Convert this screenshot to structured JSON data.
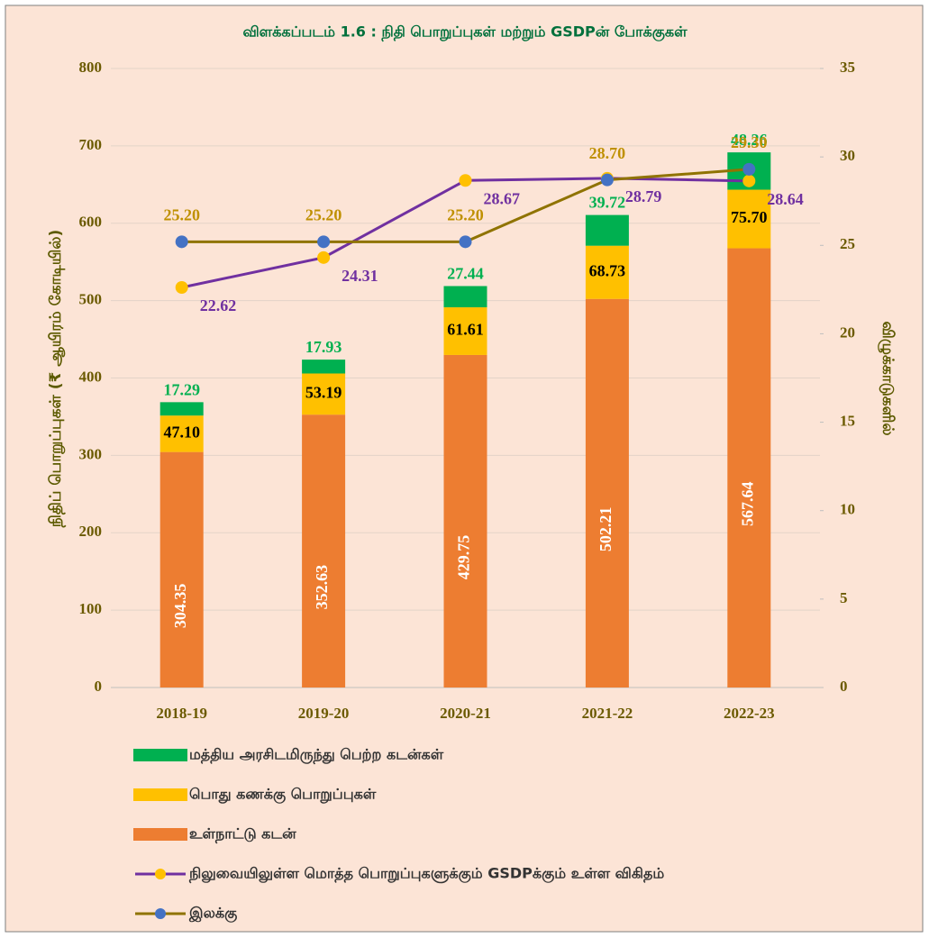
{
  "chart_data": {
    "type": "combo",
    "title": "விளக்கப்படம் 1.6 : நிதி பொறுப்புகள் மற்றும் GSDPன் போக்குகள்",
    "y_label": "நிதிப் பொறுப்புகள் (₹ ஆயிரம் கோடியில்)",
    "y2_label": "விழுக்காடுகளில்",
    "categories": [
      "2018-19",
      "2019-20",
      "2020-21",
      "2021-22",
      "2022-23"
    ],
    "series": [
      {
        "name": "மத்திய அரசிடமிருந்து பெற்ற கடன்கள்",
        "type": "bar",
        "color": "#00B050",
        "label_color": "#00B050",
        "values": [
          17.29,
          17.93,
          27.44,
          39.72,
          48.26
        ],
        "value_labels": [
          "17.29",
          "17.93",
          "27.44",
          "39.72",
          "48.26"
        ]
      },
      {
        "name": "பொது கணக்கு பொறுப்புகள்",
        "type": "bar",
        "color": "#FFC000",
        "label_color": "#000000",
        "values": [
          47.1,
          53.19,
          61.61,
          68.73,
          75.7
        ],
        "value_labels": [
          "47.10",
          "53.19",
          "61.61",
          "68.73",
          "75.70"
        ]
      },
      {
        "name": "உள்நாட்டு கடன்",
        "type": "bar",
        "color": "#ED7D31",
        "label_color": "#FFFFFF",
        "values": [
          304.35,
          352.63,
          429.75,
          502.21,
          567.64
        ],
        "value_labels": [
          "304.35",
          "352.63",
          "429.75",
          "502.21",
          "567.64"
        ]
      },
      {
        "name": "நிலுவையிலுள்ள மொத்த பொறுப்புகளுக்கும் GSDPக்கும் உள்ள விகிதம்",
        "type": "line",
        "axis": "y2",
        "color": "#7030A0",
        "marker_color": "#FFC000",
        "label_color": "#7030A0",
        "values": [
          22.62,
          24.31,
          28.67,
          28.79,
          28.64
        ],
        "value_labels": [
          "22.62",
          "24.31",
          "28.67",
          "28.79",
          "28.64"
        ]
      },
      {
        "name": "இலக்கு",
        "type": "line",
        "axis": "y2",
        "color": "#8F7300",
        "marker_color": "#4472C4",
        "label_color": "#BF9000",
        "values": [
          25.2,
          25.2,
          25.2,
          28.7,
          29.3
        ],
        "value_labels": [
          "25.20",
          "25.20",
          "25.20",
          "28.70",
          "29.30"
        ]
      }
    ],
    "ylim": [
      0,
      800
    ],
    "yticks": [
      0,
      100,
      200,
      300,
      400,
      500,
      600,
      700,
      800
    ],
    "y2lim": [
      0,
      35
    ],
    "y2ticks": [
      0,
      5,
      10,
      15,
      20,
      25,
      30,
      35
    ],
    "grid": true
  }
}
